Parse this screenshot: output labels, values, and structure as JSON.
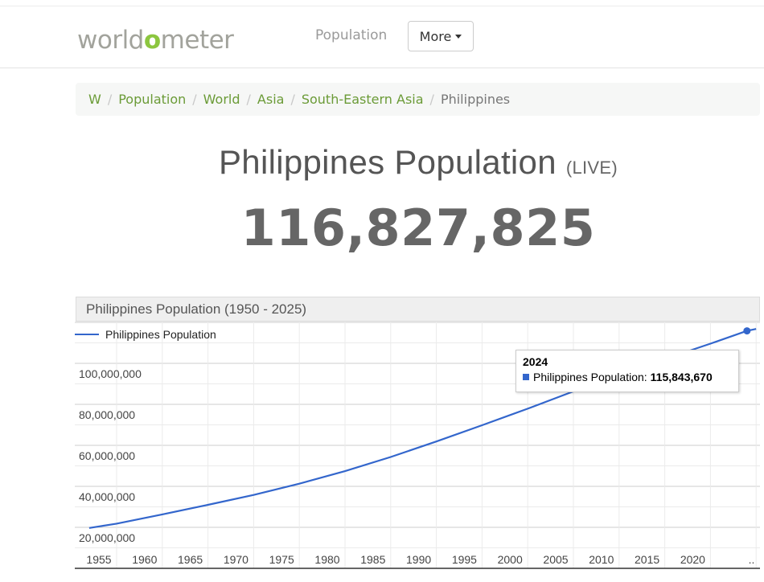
{
  "navbar": {
    "logo_prefix": "world",
    "logo_o": "o",
    "logo_suffix": "meter",
    "population_link": "Population",
    "more_button": "More"
  },
  "breadcrumb": {
    "items": [
      "W",
      "Population",
      "World",
      "Asia",
      "South-Eastern Asia"
    ],
    "current": "Philippines",
    "separator": "/"
  },
  "page": {
    "title": "Philippines Population",
    "live_label": "(LIVE)",
    "live_count": "116,827,825"
  },
  "chart_panel": {
    "header": "Philippines Population (1950 - 2025)",
    "legend_label": "Philippines Population",
    "tooltip": {
      "year": "2024",
      "series_label": "Philippines Population:",
      "value": "115,843,670"
    },
    "colors": {
      "series": "#3366cc",
      "grid_major": "#cccccc",
      "grid_minor": "#ebebeb"
    }
  },
  "chart_data": {
    "type": "line",
    "title": "Philippines Population (1950 - 2025)",
    "xlabel": "",
    "ylabel": "",
    "x": [
      1952,
      1955,
      1960,
      1965,
      1970,
      1975,
      1980,
      1985,
      1990,
      1995,
      2000,
      2005,
      2010,
      2015,
      2020,
      2024,
      2025
    ],
    "series": [
      {
        "name": "Philippines Population",
        "values": [
          19700000,
          21800000,
          26300000,
          31000000,
          35800000,
          41300000,
          47400000,
          54300000,
          61900000,
          69800000,
          77900000,
          86300000,
          93900000,
          102100000,
          109600000,
          115843670,
          116800000
        ]
      }
    ],
    "x_ticks": [
      "1955",
      "1960",
      "1965",
      "1970",
      "1975",
      "1980",
      "1985",
      "1990",
      "1995",
      "2000",
      "2005",
      "2010",
      "2015",
      "2020",
      ".."
    ],
    "y_ticks": [
      "20,000,000",
      "40,000,000",
      "60,000,000",
      "80,000,000",
      "100,000,000"
    ],
    "ylim": [
      0,
      120000000
    ],
    "grid": true,
    "legend_position": "top-left",
    "highlighted_point": {
      "x": 2024,
      "y": 115843670
    }
  }
}
